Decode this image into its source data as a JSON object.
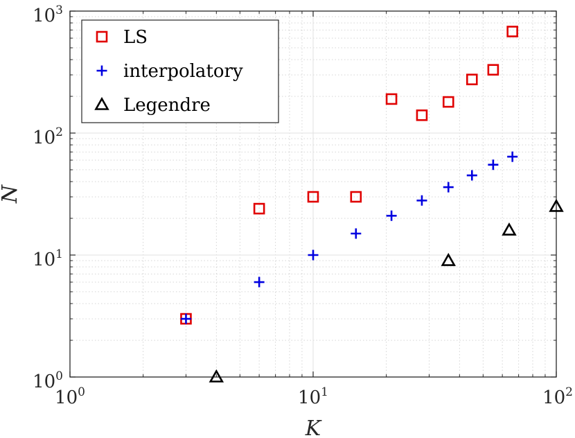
{
  "chart_data": {
    "type": "scatter",
    "x_scale": "log",
    "y_scale": "log",
    "xlabel": "K",
    "ylabel": "N",
    "xlim": [
      1,
      100
    ],
    "ylim": [
      1,
      1000
    ],
    "grid": true,
    "minor_grid": true,
    "legend_position": "top-left",
    "x_ticks": [
      {
        "base": "10",
        "exp": "0",
        "value": 1
      },
      {
        "base": "10",
        "exp": "1",
        "value": 10
      },
      {
        "base": "10",
        "exp": "2",
        "value": 100
      }
    ],
    "y_ticks": [
      {
        "base": "10",
        "exp": "0",
        "value": 1
      },
      {
        "base": "10",
        "exp": "1",
        "value": 10
      },
      {
        "base": "10",
        "exp": "2",
        "value": 100
      },
      {
        "base": "10",
        "exp": "3",
        "value": 1000
      }
    ],
    "series": [
      {
        "name": "LS",
        "marker": "square",
        "color": "#e00000",
        "x": [
          3,
          6,
          10,
          15,
          21,
          28,
          36,
          45,
          55,
          66
        ],
        "y": [
          3,
          24,
          30,
          30,
          190,
          140,
          180,
          275,
          330,
          680
        ]
      },
      {
        "name": "interpolatory",
        "marker": "plus",
        "color": "#0000e0",
        "x": [
          3,
          6,
          10,
          15,
          21,
          28,
          36,
          45,
          55,
          66
        ],
        "y": [
          3,
          6,
          10,
          15,
          21,
          28,
          36,
          45,
          55,
          64
        ]
      },
      {
        "name": "Legendre",
        "marker": "triangle",
        "color": "#000000",
        "x": [
          4,
          36,
          64,
          100
        ],
        "y": [
          1,
          9,
          16,
          25
        ]
      }
    ]
  }
}
